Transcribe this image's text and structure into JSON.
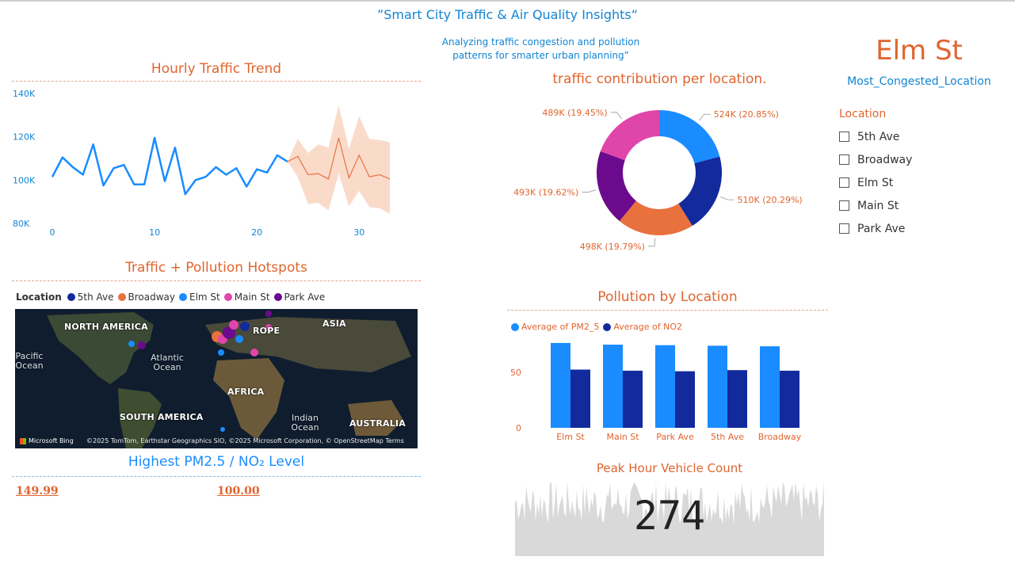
{
  "header": {
    "title": "”Smart City Traffic & Air Quality Insights“",
    "subtitle_line1": "Analyzing traffic congestion and pollution",
    "subtitle_line2": "patterns for smarter urban planning”"
  },
  "colors": {
    "accent_orange": "#e0652f",
    "accent_blue": "#1185d4",
    "series_5th_ave": "#122a9c",
    "series_broadway": "#e8713d",
    "series_elm_st": "#1a8cff",
    "series_main_st": "#e045aa",
    "series_park_ave": "#6b0a8c"
  },
  "hourly_trend": {
    "title": "Hourly Traffic Trend",
    "chart_data": {
      "type": "line",
      "x": [
        0,
        1,
        2,
        3,
        4,
        5,
        6,
        7,
        8,
        9,
        10,
        11,
        12,
        13,
        14,
        15,
        16,
        17,
        18,
        19,
        20,
        21,
        22,
        23,
        24,
        25,
        26,
        27,
        28,
        29,
        30,
        31,
        32,
        33
      ],
      "actual": [
        101500,
        110500,
        106000,
        102500,
        116500,
        97500,
        105500,
        107000,
        98000,
        98000,
        119500,
        99500,
        115000,
        93500,
        100000,
        101500,
        106000,
        102500,
        105500,
        97000,
        105000,
        103500,
        111500,
        108500,
        null,
        null,
        null,
        null,
        null,
        null,
        null,
        null,
        null,
        null
      ],
      "forecast": [
        null,
        null,
        null,
        null,
        null,
        null,
        null,
        null,
        null,
        null,
        null,
        null,
        null,
        null,
        null,
        null,
        null,
        null,
        null,
        null,
        null,
        null,
        null,
        108500,
        111000,
        102500,
        103000,
        100500,
        119500,
        101000,
        111500,
        101500,
        102500,
        100500
      ],
      "forecast_upper": [
        null,
        null,
        null,
        null,
        null,
        null,
        null,
        null,
        null,
        null,
        null,
        null,
        null,
        null,
        null,
        null,
        null,
        null,
        null,
        null,
        null,
        null,
        null,
        108500,
        119000,
        112500,
        116500,
        115000,
        134500,
        114500,
        129500,
        119000,
        118500,
        117500
      ],
      "forecast_lower": [
        null,
        null,
        null,
        null,
        null,
        null,
        null,
        null,
        null,
        null,
        null,
        null,
        null,
        null,
        null,
        null,
        null,
        null,
        null,
        null,
        null,
        null,
        null,
        108500,
        101500,
        89000,
        89500,
        86000,
        103000,
        88000,
        95000,
        87500,
        87000,
        84500
      ],
      "y_ticks": [
        "140K",
        "120K",
        "100K",
        "80K"
      ],
      "y_tick_values": [
        140000,
        120000,
        100000,
        80000
      ],
      "x_ticks": [
        "0",
        "10",
        "20",
        "30"
      ],
      "x_tick_values": [
        0,
        10,
        20,
        30
      ],
      "xlim": [
        0,
        33
      ],
      "ylim": [
        80000,
        140000
      ]
    }
  },
  "donut": {
    "title": "traffic contribution per location.",
    "chart_data": {
      "type": "pie",
      "labels": [
        "Elm St",
        "Broadway",
        "Main St",
        "Park Ave",
        "5th Ave"
      ],
      "values": [
        524,
        510,
        498,
        493,
        489
      ],
      "value_labels": [
        "524K (20.85%)",
        "510K (20.29%)",
        "498K (19.79%)",
        "493K (19.62%)",
        "489K (19.45%)"
      ],
      "colors": [
        "#1a8cff",
        "#122a9c",
        "#e8713d",
        "#6b0a8c",
        "#e045aa"
      ]
    }
  },
  "kpi_location": {
    "value": "Elm St",
    "label": "Most_Congested_Location"
  },
  "slicer": {
    "title": "Location",
    "items": [
      "5th Ave",
      "Broadway",
      "Elm St",
      "Main St",
      "Park Ave"
    ]
  },
  "hotspots": {
    "title": "Traffic + Pollution Hotspots",
    "legend_title": "Location",
    "legend": [
      {
        "label": "5th Ave",
        "color": "#122a9c"
      },
      {
        "label": "Broadway",
        "color": "#e8713d"
      },
      {
        "label": "Elm St",
        "color": "#1a8cff"
      },
      {
        "label": "Main St",
        "color": "#e045aa"
      },
      {
        "label": "Park Ave",
        "color": "#6b0a8c"
      }
    ],
    "map_labels": {
      "north_america": "NORTH AMERICA",
      "europe": "ROPE",
      "asia": "ASIA",
      "pacific": "Pacific Ocean",
      "atlantic": "Atlantic Ocean",
      "africa": "AFRICA",
      "south_america": "SOUTH AMERICA",
      "indian": "Indian Ocean",
      "australia": "AUSTRALIA"
    },
    "bing": "Microsoft Bing",
    "copyright": "©2025 TomTom, Earthstar Geographics SIO, ©2025 Microsoft Corporation, © OpenStreetMap  Terms"
  },
  "pollution": {
    "title": "Pollution by Location",
    "chart_data": {
      "type": "bar",
      "categories": [
        "Elm St",
        "Main St",
        "Park Ave",
        "5th Ave",
        "Broadway"
      ],
      "series": [
        {
          "name": "Average of PM2_5",
          "values": [
            76.5,
            75.0,
            74.5,
            74.0,
            73.5
          ],
          "color": "#1a8cff"
        },
        {
          "name": "Average of NO2",
          "values": [
            52.5,
            51.5,
            51.0,
            52.0,
            51.5
          ],
          "color": "#122a9c"
        }
      ],
      "y_ticks": [
        "50",
        "0"
      ],
      "y_tick_values": [
        50,
        0
      ],
      "ylim": [
        0,
        80
      ]
    }
  },
  "max_levels": {
    "title": "Highest PM2.5 / NO₂ Level",
    "pm25": "149.99",
    "no2": "100.00"
  },
  "peak_hour": {
    "title": "Peak Hour Vehicle Count",
    "value": "274"
  }
}
